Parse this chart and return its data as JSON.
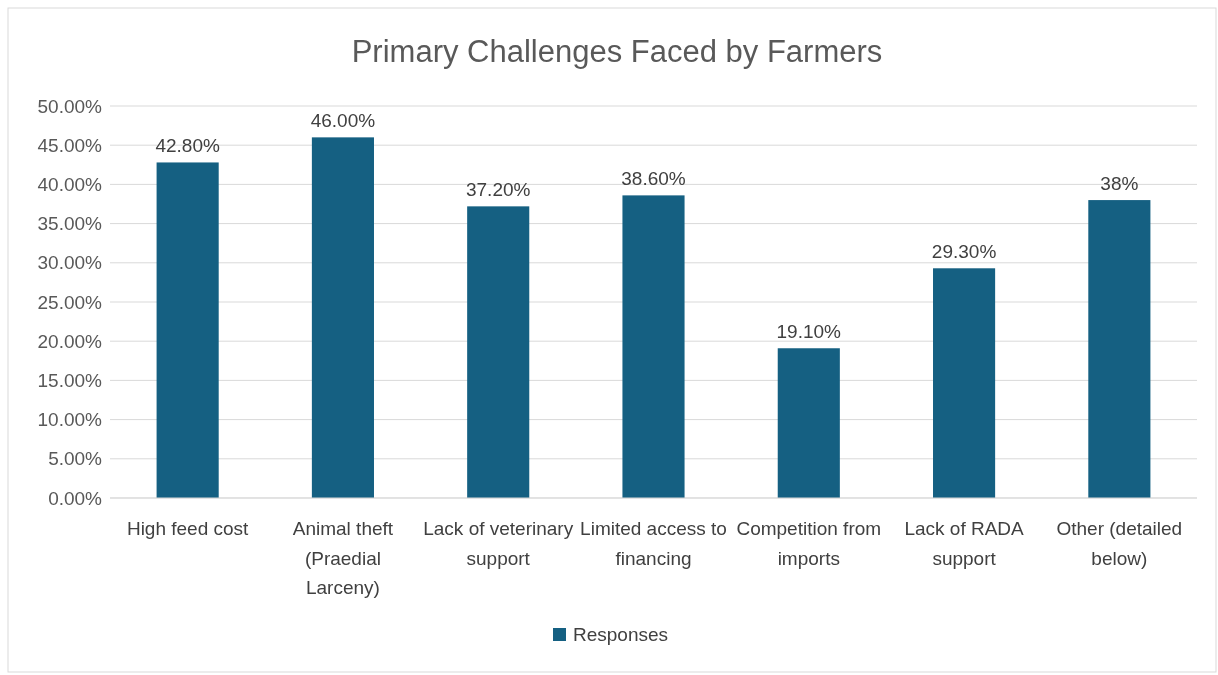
{
  "chart_data": {
    "type": "bar",
    "title": "Primary Challenges Faced by Farmers",
    "categories": [
      "High feed cost",
      "Animal theft (Praedial Larceny)",
      "Lack of veterinary support",
      "Limited access to financing",
      "Competition from imports",
      "Lack of RADA support",
      "Other (detailed below)"
    ],
    "series": [
      {
        "name": "Responses",
        "color": "#156082",
        "values": [
          42.8,
          46,
          37.2,
          38.6,
          19.1,
          29.3,
          38
        ],
        "value_labels": [
          "42.80%",
          "46.00%",
          "37.20%",
          "38.60%",
          "19.10%",
          "29.30%",
          "38%"
        ]
      }
    ],
    "ylim": [
      0,
      50
    ],
    "yticks": [
      {
        "value": 0,
        "label": "0.00%"
      },
      {
        "value": 5,
        "label": "5.00%"
      },
      {
        "value": 10,
        "label": "10.00%"
      },
      {
        "value": 15,
        "label": "15.00%"
      },
      {
        "value": 20,
        "label": "20.00%"
      },
      {
        "value": 25,
        "label": "25.00%"
      },
      {
        "value": 30,
        "label": "30.00%"
      },
      {
        "value": 35,
        "label": "35.00%"
      },
      {
        "value": 40,
        "label": "40.00%"
      },
      {
        "value": 45,
        "label": "45.00%"
      },
      {
        "value": 50,
        "label": "50.00%"
      }
    ],
    "grid": "y",
    "legend": "bottom"
  }
}
